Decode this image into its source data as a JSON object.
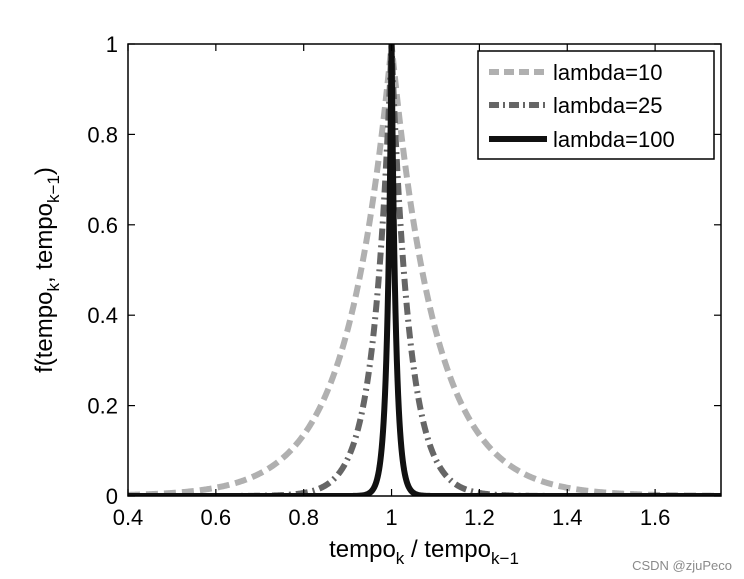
{
  "chart_data": {
    "type": "line",
    "title": "",
    "xlabel_main": "tempo",
    "xlabel_sub1": "k",
    "xlabel_mid": " / tempo",
    "xlabel_sub2": "k−1",
    "ylabel_main": "f(tempo",
    "ylabel_sub1": "k",
    "ylabel_mid": ", tempo",
    "ylabel_sub2": "k−1",
    "ylabel_end": ")",
    "xlim": [
      0.4,
      1.75
    ],
    "ylim": [
      0,
      1
    ],
    "xticks": [
      0.4,
      0.6,
      0.8,
      1,
      1.2,
      1.4,
      1.6
    ],
    "xtick_labels": [
      "0.4",
      "0.6",
      "0.8",
      "1",
      "1.2",
      "1.4",
      "1.6"
    ],
    "yticks": [
      0,
      0.2,
      0.4,
      0.6,
      0.8,
      1
    ],
    "ytick_labels": [
      "0",
      "0.2",
      "0.4",
      "0.6",
      "0.8",
      "1"
    ],
    "legend_position": "top-right",
    "series": [
      {
        "name": "lambda=10",
        "lambda": 10,
        "color": "#b0b0b0",
        "style": "dashed"
      },
      {
        "name": "lambda=25",
        "lambda": 25,
        "color": "#666666",
        "style": "dashdot"
      },
      {
        "name": "lambda=100",
        "lambda": 100,
        "color": "#111111",
        "style": "solid"
      }
    ]
  },
  "watermark": "CSDN @zjuPeco"
}
